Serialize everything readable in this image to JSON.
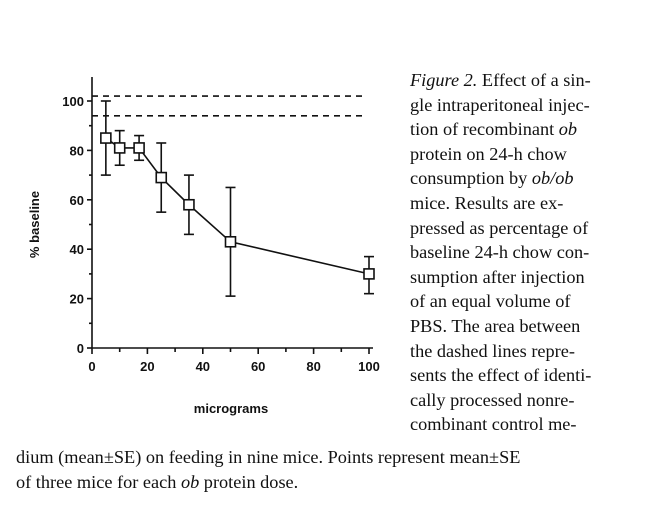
{
  "chart_data": {
    "type": "line",
    "xlabel": "micrograms",
    "ylabel": "% baseline",
    "xlim": [
      0,
      100
    ],
    "ylim": [
      0,
      105
    ],
    "xticks": [
      0,
      20,
      40,
      60,
      80,
      100
    ],
    "yticks": [
      0,
      20,
      40,
      60,
      80,
      100
    ],
    "x": [
      5,
      10,
      17,
      25,
      35,
      50,
      100
    ],
    "series": [
      {
        "values": [
          85,
          81,
          81,
          69,
          58,
          43,
          30
        ],
        "err_high": [
          100,
          88,
          86,
          83,
          70,
          65,
          37
        ],
        "err_low": [
          70,
          74,
          76,
          55,
          46,
          21,
          22
        ]
      }
    ],
    "reference_lines": [
      102,
      94
    ],
    "reference_style": "dashed",
    "marker": "open-square",
    "grid": false,
    "legend": "none"
  },
  "caption": {
    "right_lines": [
      [
        {
          "t": "Figure 2.",
          "i": true
        },
        {
          "t": " Effect of a sin-"
        }
      ],
      [
        {
          "t": "gle intraperitoneal injec-"
        }
      ],
      [
        {
          "t": "tion of recombinant "
        },
        {
          "t": "ob",
          "i": true
        }
      ],
      [
        {
          "t": "protein on 24-h chow"
        }
      ],
      [
        {
          "t": "consumption by "
        },
        {
          "t": "ob/ob",
          "i": true
        }
      ],
      [
        {
          "t": "mice. Results are ex-"
        }
      ],
      [
        {
          "t": "pressed as percentage of"
        }
      ],
      [
        {
          "t": "baseline 24-h chow con-"
        }
      ],
      [
        {
          "t": "sumption after injection"
        }
      ],
      [
        {
          "t": "of an equal volume of"
        }
      ],
      [
        {
          "t": "PBS. The area between"
        }
      ],
      [
        {
          "t": "the dashed lines repre-"
        }
      ],
      [
        {
          "t": "sents the effect of identi-"
        }
      ],
      [
        {
          "t": "cally processed nonre-"
        }
      ],
      [
        {
          "t": "combinant control me-"
        }
      ]
    ],
    "bottom_lines": [
      [
        {
          "t": "dium (mean±SE) on feeding in nine mice. Points represent mean±SE"
        }
      ],
      [
        {
          "t": "of three mice for each "
        },
        {
          "t": "ob",
          "i": true
        },
        {
          "t": " protein dose."
        }
      ]
    ]
  }
}
